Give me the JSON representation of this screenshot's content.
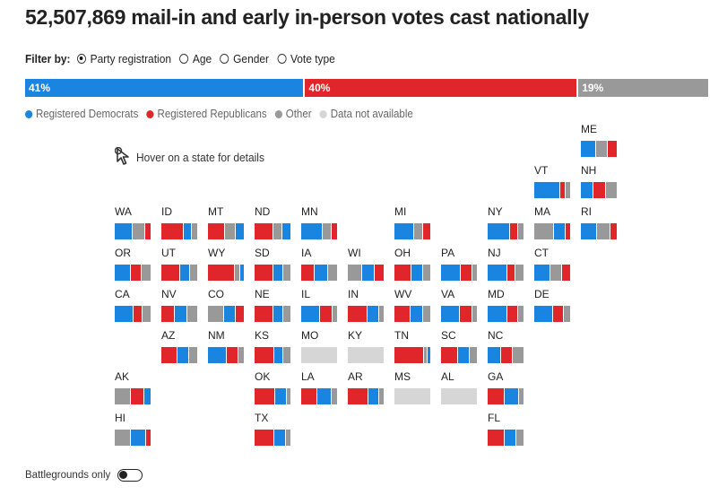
{
  "title": "52,507,869 mail-in and early in-person votes cast nationally",
  "filter": {
    "label": "Filter by:",
    "options": [
      {
        "label": "Party registration",
        "selected": true
      },
      {
        "label": "Age",
        "selected": false
      },
      {
        "label": "Gender",
        "selected": false
      },
      {
        "label": "Vote type",
        "selected": false
      }
    ]
  },
  "colors": {
    "dem": "#1a85e0",
    "rep": "#e0262b",
    "other": "#999999",
    "na": "#d6d6d6"
  },
  "national_bar": [
    {
      "label": "41%",
      "value": 41,
      "party": "dem"
    },
    {
      "label": "40%",
      "value": 40,
      "party": "rep"
    },
    {
      "label": "19%",
      "value": 19,
      "party": "other"
    }
  ],
  "legend": [
    {
      "label": "Registered Democrats",
      "party": "dem"
    },
    {
      "label": "Registered Republicans",
      "party": "rep"
    },
    {
      "label": "Other",
      "party": "other"
    },
    {
      "label": "Data not available",
      "party": "na"
    }
  ],
  "hover_hint": "Hover on a state for details",
  "states": [
    {
      "abbr": "ME",
      "col": 10,
      "row": 0,
      "segs": [
        [
          "dem",
          0.42
        ],
        [
          "other",
          0.32
        ],
        [
          "rep",
          0.26
        ]
      ]
    },
    {
      "abbr": "VT",
      "col": 9,
      "row": 1,
      "segs": [
        [
          "dem",
          0.72
        ],
        [
          "rep",
          0.15
        ],
        [
          "other",
          0.13
        ]
      ]
    },
    {
      "abbr": "NH",
      "col": 10,
      "row": 1,
      "segs": [
        [
          "dem",
          0.35
        ],
        [
          "rep",
          0.35
        ],
        [
          "other",
          0.3
        ]
      ]
    },
    {
      "abbr": "WA",
      "col": 0,
      "row": 2,
      "segs": [
        [
          "dem",
          0.5
        ],
        [
          "other",
          0.35
        ],
        [
          "rep",
          0.15
        ]
      ]
    },
    {
      "abbr": "ID",
      "col": 1,
      "row": 2,
      "segs": [
        [
          "rep",
          0.62
        ],
        [
          "dem",
          0.22
        ],
        [
          "other",
          0.16
        ]
      ]
    },
    {
      "abbr": "MT",
      "col": 2,
      "row": 2,
      "segs": [
        [
          "rep",
          0.48
        ],
        [
          "other",
          0.3
        ],
        [
          "dem",
          0.22
        ]
      ]
    },
    {
      "abbr": "ND",
      "col": 3,
      "row": 2,
      "segs": [
        [
          "rep",
          0.52
        ],
        [
          "other",
          0.26
        ],
        [
          "dem",
          0.22
        ]
      ]
    },
    {
      "abbr": "MN",
      "col": 4,
      "row": 2,
      "segs": [
        [
          "dem",
          0.6
        ],
        [
          "other",
          0.25
        ],
        [
          "rep",
          0.15
        ]
      ]
    },
    {
      "abbr": "MI",
      "col": 6,
      "row": 2,
      "segs": [
        [
          "dem",
          0.55
        ],
        [
          "other",
          0.25
        ],
        [
          "rep",
          0.2
        ]
      ]
    },
    {
      "abbr": "NY",
      "col": 8,
      "row": 2,
      "segs": [
        [
          "dem",
          0.62
        ],
        [
          "rep",
          0.24
        ],
        [
          "other",
          0.14
        ]
      ]
    },
    {
      "abbr": "MA",
      "col": 9,
      "row": 2,
      "segs": [
        [
          "other",
          0.55
        ],
        [
          "dem",
          0.33
        ],
        [
          "rep",
          0.12
        ]
      ]
    },
    {
      "abbr": "RI",
      "col": 10,
      "row": 2,
      "segs": [
        [
          "dem",
          0.45
        ],
        [
          "other",
          0.38
        ],
        [
          "rep",
          0.17
        ]
      ]
    },
    {
      "abbr": "OR",
      "col": 0,
      "row": 3,
      "segs": [
        [
          "dem",
          0.45
        ],
        [
          "rep",
          0.3
        ],
        [
          "other",
          0.25
        ]
      ]
    },
    {
      "abbr": "UT",
      "col": 1,
      "row": 3,
      "segs": [
        [
          "rep",
          0.52
        ],
        [
          "dem",
          0.28
        ],
        [
          "other",
          0.2
        ]
      ]
    },
    {
      "abbr": "WY",
      "col": 2,
      "row": 3,
      "segs": [
        [
          "rep",
          0.75
        ],
        [
          "other",
          0.15
        ],
        [
          "dem",
          0.1
        ]
      ]
    },
    {
      "abbr": "SD",
      "col": 3,
      "row": 3,
      "segs": [
        [
          "rep",
          0.52
        ],
        [
          "dem",
          0.28
        ],
        [
          "other",
          0.2
        ]
      ]
    },
    {
      "abbr": "IA",
      "col": 4,
      "row": 3,
      "segs": [
        [
          "rep",
          0.38
        ],
        [
          "dem",
          0.36
        ],
        [
          "other",
          0.26
        ]
      ]
    },
    {
      "abbr": "WI",
      "col": 5,
      "row": 3,
      "segs": [
        [
          "other",
          0.4
        ],
        [
          "dem",
          0.35
        ],
        [
          "rep",
          0.25
        ]
      ]
    },
    {
      "abbr": "OH",
      "col": 6,
      "row": 3,
      "segs": [
        [
          "rep",
          0.48
        ],
        [
          "dem",
          0.32
        ],
        [
          "other",
          0.2
        ]
      ]
    },
    {
      "abbr": "PA",
      "col": 7,
      "row": 3,
      "segs": [
        [
          "dem",
          0.56
        ],
        [
          "rep",
          0.32
        ],
        [
          "other",
          0.12
        ]
      ]
    },
    {
      "abbr": "NJ",
      "col": 8,
      "row": 3,
      "segs": [
        [
          "dem",
          0.56
        ],
        [
          "rep",
          0.22
        ],
        [
          "other",
          0.22
        ]
      ]
    },
    {
      "abbr": "CT",
      "col": 9,
      "row": 3,
      "segs": [
        [
          "dem",
          0.45
        ],
        [
          "other",
          0.33
        ],
        [
          "rep",
          0.22
        ]
      ]
    },
    {
      "abbr": "CA",
      "col": 0,
      "row": 4,
      "segs": [
        [
          "dem",
          0.52
        ],
        [
          "rep",
          0.26
        ],
        [
          "other",
          0.22
        ]
      ]
    },
    {
      "abbr": "NV",
      "col": 1,
      "row": 4,
      "segs": [
        [
          "rep",
          0.38
        ],
        [
          "dem",
          0.35
        ],
        [
          "other",
          0.27
        ]
      ]
    },
    {
      "abbr": "CO",
      "col": 2,
      "row": 4,
      "segs": [
        [
          "other",
          0.45
        ],
        [
          "dem",
          0.32
        ],
        [
          "rep",
          0.23
        ]
      ]
    },
    {
      "abbr": "NE",
      "col": 3,
      "row": 4,
      "segs": [
        [
          "rep",
          0.52
        ],
        [
          "dem",
          0.28
        ],
        [
          "other",
          0.2
        ]
      ]
    },
    {
      "abbr": "IL",
      "col": 4,
      "row": 4,
      "segs": [
        [
          "dem",
          0.52
        ],
        [
          "rep",
          0.35
        ],
        [
          "other",
          0.13
        ]
      ]
    },
    {
      "abbr": "IN",
      "col": 5,
      "row": 4,
      "segs": [
        [
          "rep",
          0.55
        ],
        [
          "dem",
          0.33
        ],
        [
          "other",
          0.12
        ]
      ]
    },
    {
      "abbr": "WV",
      "col": 6,
      "row": 4,
      "segs": [
        [
          "rep",
          0.45
        ],
        [
          "dem",
          0.35
        ],
        [
          "other",
          0.2
        ]
      ]
    },
    {
      "abbr": "VA",
      "col": 7,
      "row": 4,
      "segs": [
        [
          "dem",
          0.52
        ],
        [
          "rep",
          0.35
        ],
        [
          "other",
          0.13
        ]
      ]
    },
    {
      "abbr": "MD",
      "col": 8,
      "row": 4,
      "segs": [
        [
          "dem",
          0.55
        ],
        [
          "rep",
          0.3
        ],
        [
          "other",
          0.15
        ]
      ]
    },
    {
      "abbr": "DE",
      "col": 9,
      "row": 4,
      "segs": [
        [
          "dem",
          0.52
        ],
        [
          "rep",
          0.3
        ],
        [
          "other",
          0.18
        ]
      ]
    },
    {
      "abbr": "AZ",
      "col": 1,
      "row": 5,
      "segs": [
        [
          "rep",
          0.45
        ],
        [
          "dem",
          0.32
        ],
        [
          "other",
          0.23
        ]
      ]
    },
    {
      "abbr": "NM",
      "col": 2,
      "row": 5,
      "segs": [
        [
          "dem",
          0.52
        ],
        [
          "rep",
          0.32
        ],
        [
          "other",
          0.16
        ]
      ]
    },
    {
      "abbr": "KS",
      "col": 3,
      "row": 5,
      "segs": [
        [
          "rep",
          0.55
        ],
        [
          "dem",
          0.25
        ],
        [
          "other",
          0.2
        ]
      ]
    },
    {
      "abbr": "MO",
      "col": 4,
      "row": 5,
      "segs": [
        [
          "na",
          1.0
        ]
      ]
    },
    {
      "abbr": "KY",
      "col": 5,
      "row": 5,
      "segs": [
        [
          "na",
          1.0
        ]
      ]
    },
    {
      "abbr": "TN",
      "col": 6,
      "row": 5,
      "segs": [
        [
          "rep",
          0.82
        ],
        [
          "other",
          0.1
        ],
        [
          "dem",
          0.08
        ]
      ]
    },
    {
      "abbr": "SC",
      "col": 7,
      "row": 5,
      "segs": [
        [
          "rep",
          0.48
        ],
        [
          "dem",
          0.32
        ],
        [
          "other",
          0.2
        ]
      ]
    },
    {
      "abbr": "NC",
      "col": 8,
      "row": 5,
      "segs": [
        [
          "dem",
          0.38
        ],
        [
          "rep",
          0.32
        ],
        [
          "other",
          0.3
        ]
      ]
    },
    {
      "abbr": "AK",
      "col": 0,
      "row": 6,
      "segs": [
        [
          "other",
          0.45
        ],
        [
          "rep",
          0.38
        ],
        [
          "dem",
          0.17
        ]
      ]
    },
    {
      "abbr": "OK",
      "col": 3,
      "row": 6,
      "segs": [
        [
          "rep",
          0.58
        ],
        [
          "dem",
          0.32
        ],
        [
          "other",
          0.1
        ]
      ]
    },
    {
      "abbr": "LA",
      "col": 4,
      "row": 6,
      "segs": [
        [
          "rep",
          0.45
        ],
        [
          "dem",
          0.4
        ],
        [
          "other",
          0.15
        ]
      ]
    },
    {
      "abbr": "AR",
      "col": 5,
      "row": 6,
      "segs": [
        [
          "rep",
          0.58
        ],
        [
          "dem",
          0.3
        ],
        [
          "other",
          0.12
        ]
      ]
    },
    {
      "abbr": "MS",
      "col": 6,
      "row": 6,
      "segs": [
        [
          "na",
          1.0
        ]
      ]
    },
    {
      "abbr": "AL",
      "col": 7,
      "row": 6,
      "segs": [
        [
          "na",
          1.0
        ]
      ]
    },
    {
      "abbr": "GA",
      "col": 8,
      "row": 6,
      "segs": [
        [
          "rep",
          0.48
        ],
        [
          "dem",
          0.4
        ],
        [
          "other",
          0.12
        ]
      ]
    },
    {
      "abbr": "HI",
      "col": 0,
      "row": 7,
      "segs": [
        [
          "other",
          0.45
        ],
        [
          "dem",
          0.42
        ],
        [
          "rep",
          0.13
        ]
      ]
    },
    {
      "abbr": "TX",
      "col": 3,
      "row": 7,
      "segs": [
        [
          "rep",
          0.55
        ],
        [
          "dem",
          0.32
        ],
        [
          "other",
          0.13
        ]
      ]
    },
    {
      "abbr": "FL",
      "col": 8,
      "row": 7,
      "segs": [
        [
          "rep",
          0.48
        ],
        [
          "dem",
          0.33
        ],
        [
          "other",
          0.19
        ]
      ]
    }
  ],
  "battlegrounds_label": "Battlegrounds only",
  "battlegrounds_on": false
}
